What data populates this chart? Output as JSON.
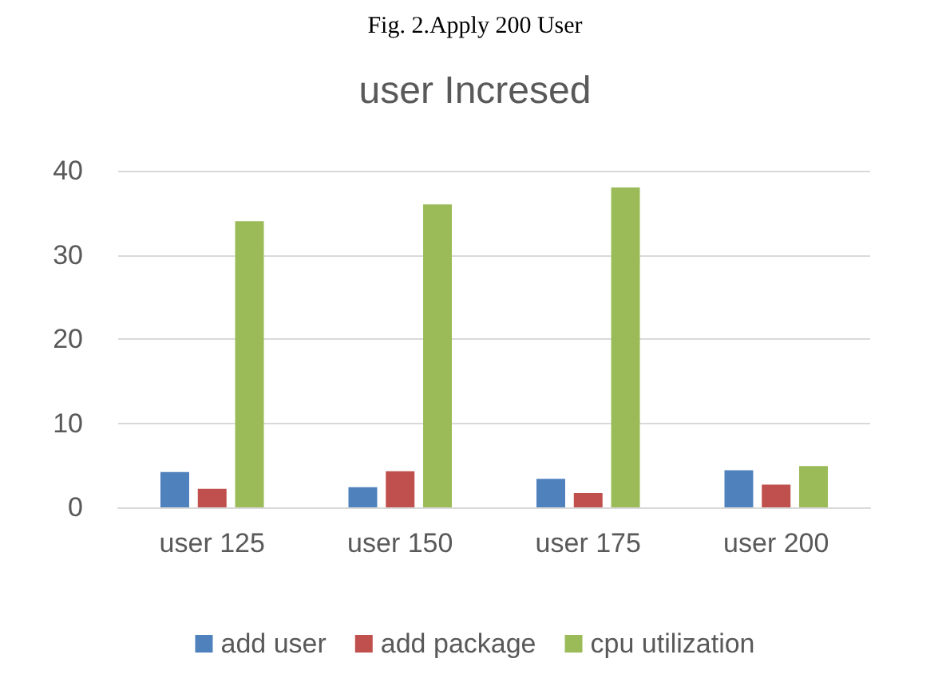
{
  "chart_data": {
    "type": "bar",
    "title": "user Incresed",
    "annotations": [
      "Fig. 2.Apply 200 User"
    ],
    "categories": [
      "user 125",
      "user 150",
      "user 175",
      "user 200"
    ],
    "series": [
      {
        "name": "add user",
        "color": "#4f81bd",
        "values": [
          4.2,
          2.4,
          3.4,
          4.4
        ]
      },
      {
        "name": "add package",
        "color": "#c0504d",
        "values": [
          2.2,
          4.3,
          1.7,
          2.7
        ]
      },
      {
        "name": "cpu utilization",
        "color": "#9bbb59",
        "values": [
          34,
          36,
          38,
          4.9
        ]
      }
    ],
    "ylim": [
      0,
      40
    ],
    "yticks": [
      0,
      10,
      20,
      30,
      40
    ],
    "grid": "y",
    "legend": "bottom"
  }
}
